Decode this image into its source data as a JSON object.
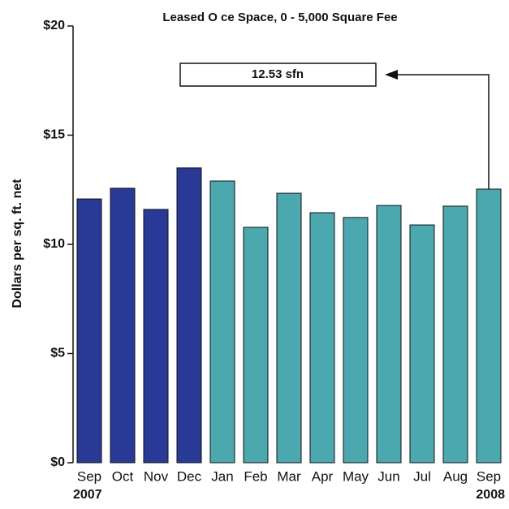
{
  "chart_data": {
    "type": "bar",
    "title": "Leased O    ce Space, 0 - 5,000 Square Fee",
    "y_label": "Dollars per sq. ft. net",
    "categories": [
      "Sep",
      "Oct",
      "Nov",
      "Dec",
      "Jan",
      "Feb",
      "Mar",
      "Apr",
      "May",
      "Jun",
      "Jul",
      "Aug",
      "Sep"
    ],
    "year_labels": [
      "2007",
      "2008"
    ],
    "values": [
      12.08,
      12.57,
      11.6,
      13.5,
      12.9,
      10.78,
      12.34,
      11.45,
      11.23,
      11.78,
      10.89,
      11.75,
      12.53
    ],
    "colors": [
      "#283a96",
      "#283a96",
      "#283a96",
      "#283a96",
      "#4aa8ae",
      "#4aa8ae",
      "#4aa8ae",
      "#4aa8ae",
      "#4aa8ae",
      "#4aa8ae",
      "#4aa8ae",
      "#4aa8ae",
      "#4aa8ae"
    ],
    "annotation": "12.53 sfn",
    "ylim": [
      0,
      20
    ],
    "yticks": [
      {
        "value": 0,
        "label": "$0"
      },
      {
        "value": 5,
        "label": "$5"
      },
      {
        "value": 10,
        "label": "$10"
      },
      {
        "value": 15,
        "label": "$15"
      },
      {
        "value": 20,
        "label": "$20"
      }
    ]
  }
}
